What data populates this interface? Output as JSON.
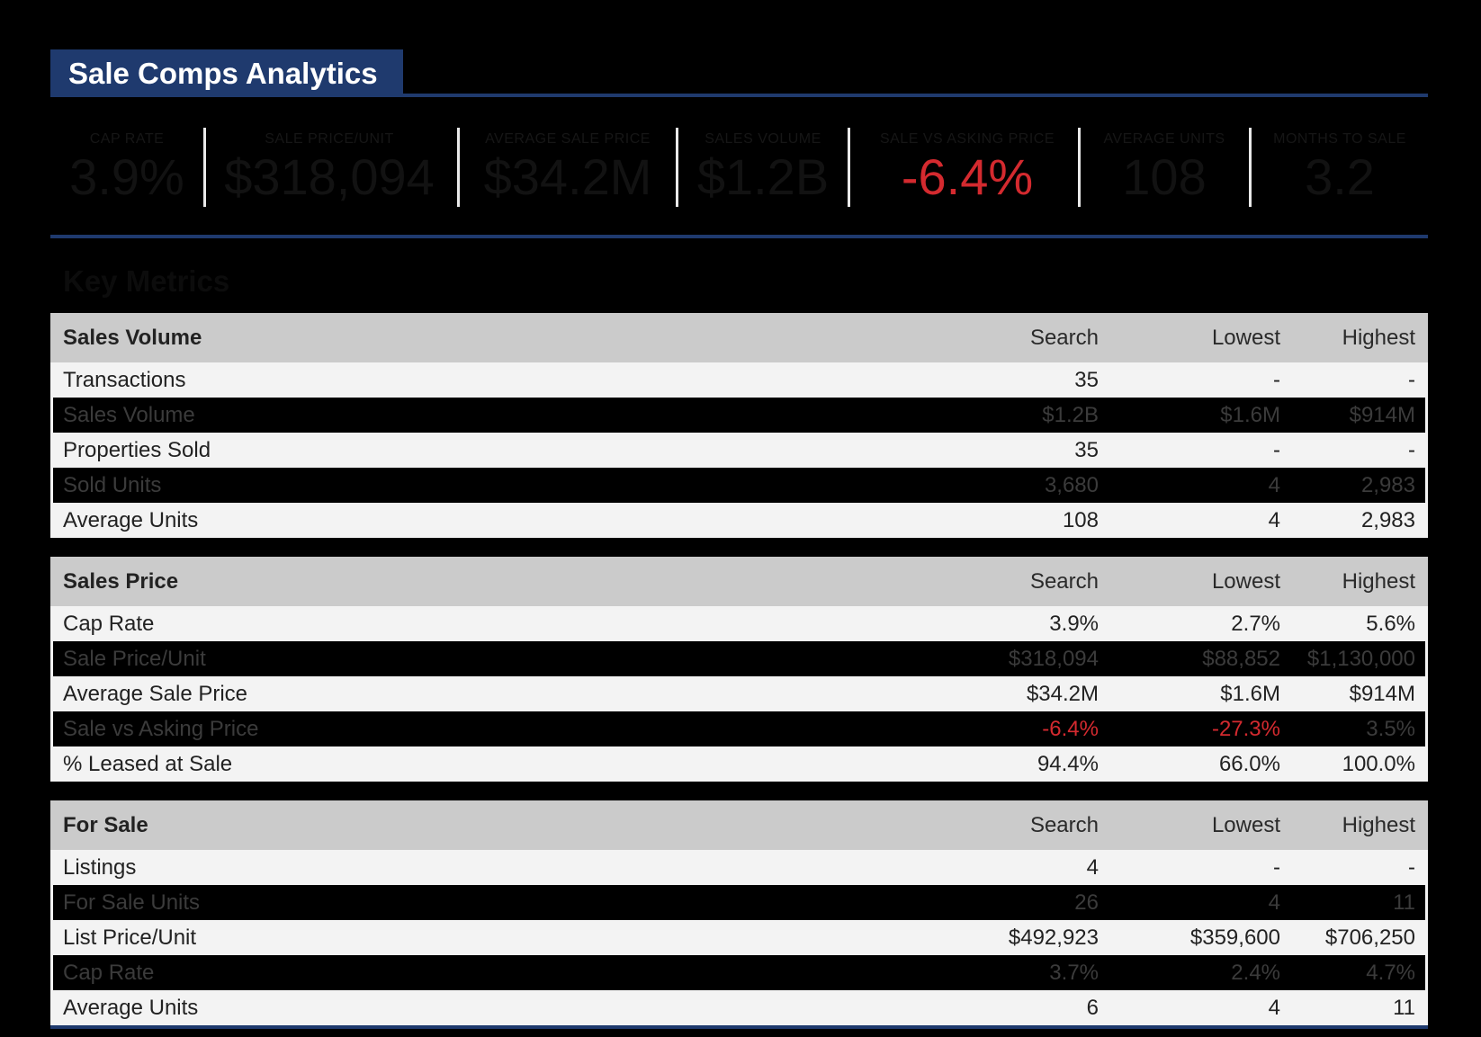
{
  "header": {
    "title": "Sale Comps Analytics"
  },
  "kpis": [
    {
      "label": "CAP RATE",
      "value": "3.9%"
    },
    {
      "label": "SALE PRICE/UNIT",
      "value": "$318,094"
    },
    {
      "label": "AVERAGE SALE PRICE",
      "value": "$34.2M"
    },
    {
      "label": "SALES VOLUME",
      "value": "$1.2B"
    },
    {
      "label": "SALE VS ASKING PRICE",
      "value": "-6.4%"
    },
    {
      "label": "AVERAGE UNITS",
      "value": "108"
    },
    {
      "label": "MONTHS TO SALE",
      "value": "3.2"
    }
  ],
  "section": {
    "heading": "Key Metrics"
  },
  "tables": [
    {
      "title": "Sales Volume",
      "columns": [
        "Search",
        "Lowest",
        "Highest"
      ],
      "rows": [
        {
          "label": "Transactions",
          "values": [
            "35",
            "-",
            "-"
          ]
        },
        {
          "label": "Sales Volume",
          "values": [
            "$1.2B",
            "$1.6M",
            "$914M"
          ]
        },
        {
          "label": "Properties Sold",
          "values": [
            "35",
            "-",
            "-"
          ]
        },
        {
          "label": "Sold Units",
          "values": [
            "3,680",
            "4",
            "2,983"
          ]
        },
        {
          "label": "Average Units",
          "values": [
            "108",
            "4",
            "2,983"
          ]
        }
      ]
    },
    {
      "title": "Sales Price",
      "columns": [
        "Search",
        "Lowest",
        "Highest"
      ],
      "rows": [
        {
          "label": "Cap Rate",
          "values": [
            "3.9%",
            "2.7%",
            "5.6%"
          ]
        },
        {
          "label": "Sale Price/Unit",
          "values": [
            "$318,094",
            "$88,852",
            "$1,130,000"
          ]
        },
        {
          "label": "Average Sale Price",
          "values": [
            "$34.2M",
            "$1.6M",
            "$914M"
          ]
        },
        {
          "label": "Sale vs Asking Price",
          "values": [
            "-6.4%",
            "-27.3%",
            "3.5%"
          ]
        },
        {
          "label": "% Leased at Sale",
          "values": [
            "94.4%",
            "66.0%",
            "100.0%"
          ]
        }
      ]
    },
    {
      "title": "For Sale",
      "columns": [
        "Search",
        "Lowest",
        "Highest"
      ],
      "rows": [
        {
          "label": "Listings",
          "values": [
            "4",
            "-",
            "-"
          ]
        },
        {
          "label": "For Sale Units",
          "values": [
            "26",
            "4",
            "11"
          ]
        },
        {
          "label": "List Price/Unit",
          "values": [
            "$492,923",
            "$359,600",
            "$706,250"
          ]
        },
        {
          "label": "Cap Rate",
          "values": [
            "3.7%",
            "2.4%",
            "4.7%"
          ]
        },
        {
          "label": "Average Units",
          "values": [
            "6",
            "4",
            "11"
          ]
        }
      ]
    }
  ],
  "colors": {
    "brand": "#1f3a6e",
    "negative": "#d42a2f",
    "header_row": "#cbcbcb",
    "light_row": "#f3f3f3"
  }
}
